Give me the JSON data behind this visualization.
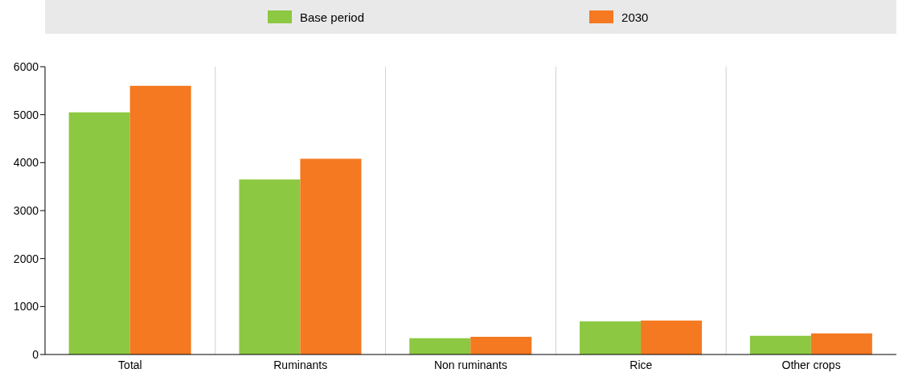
{
  "chart_data": {
    "type": "bar",
    "categories": [
      "Total",
      "Ruminants",
      "Non ruminants",
      "Rice",
      "Other crops"
    ],
    "series": [
      {
        "name": "Base period",
        "color": "#8cc841",
        "values": [
          5050,
          3650,
          340,
          690,
          390
        ]
      },
      {
        "name": "2030",
        "color": "#f47920",
        "values": [
          5600,
          4080,
          370,
          710,
          440
        ]
      }
    ],
    "ylim": [
      0,
      6000
    ],
    "yticks": [
      0,
      1000,
      2000,
      3000,
      4000,
      5000,
      6000
    ],
    "grid": "x",
    "legend": "top"
  }
}
